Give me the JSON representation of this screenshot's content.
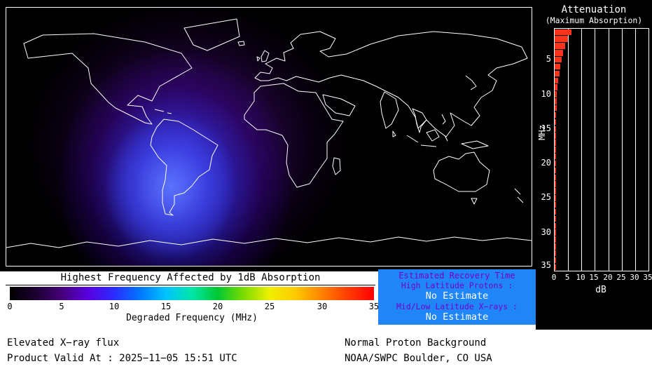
{
  "colors": {
    "panel_black": "#000000",
    "coastline_white": "#ffffff",
    "bar_red": "#f8341c",
    "recovery_box_blue": "#2086f8",
    "recovery_label_purple": "#7600c8",
    "recovery_value_white": "#ffffff",
    "absorption_blue": "#3c3cf5",
    "absorption_purple": "#6e19b9"
  },
  "attenuation_panel": {
    "title_line1": "Attenuation",
    "title_line2": "(Maximum Absorption)",
    "y_axis_label": "MHz",
    "x_axis_label": "dB",
    "y_ticks": [
      "5",
      "10",
      "15",
      "20",
      "25",
      "30",
      "35"
    ],
    "x_ticks": [
      "0",
      "5",
      "10",
      "15",
      "20",
      "25",
      "30",
      "35"
    ]
  },
  "chart_data": [
    {
      "type": "bar",
      "orientation": "horizontal",
      "title": "Attenuation (Maximum Absorption)",
      "xlabel": "dB",
      "ylabel": "MHz",
      "xlim": [
        0,
        35
      ],
      "ylim": [
        1,
        36
      ],
      "grid": true,
      "bar_color": "#f8341c",
      "categories_mhz": [
        1,
        2,
        3,
        4,
        5,
        6,
        7,
        8,
        9,
        10,
        11,
        12,
        13,
        14,
        15,
        16,
        17,
        18,
        19,
        20,
        21,
        22,
        23,
        24,
        25,
        26,
        27,
        28,
        29,
        30,
        31,
        32,
        33,
        34,
        35
      ],
      "values_db": [
        6.2,
        5.0,
        4.0,
        3.2,
        2.6,
        2.1,
        1.7,
        1.4,
        1.1,
        0.9,
        0.8,
        0.7,
        0.6,
        0.6,
        0.5,
        0.5,
        0.4,
        0.4,
        0.4,
        0.3,
        0.3,
        0.3,
        0.3,
        0.3,
        0.3,
        0.2,
        0.2,
        0.2,
        0.2,
        0.2,
        0.2,
        0.2,
        0.2,
        0.2,
        0.2
      ]
    },
    {
      "type": "heatmap",
      "title": "Highest Frequency Affected by 1dB Absorption",
      "colorbar_label": "Degraded Frequency (MHz)",
      "scale_min_mhz": 0,
      "scale_max_mhz": 35,
      "peak_region": "South America / South Atlantic (dayside)"
    }
  ],
  "legend": {
    "title": "Highest Frequency Affected by 1dB Absorption",
    "ticks": [
      "0",
      "5",
      "10",
      "15",
      "20",
      "25",
      "30",
      "35"
    ],
    "caption": "Degraded Frequency (MHz)",
    "gradient_stops": [
      "#000000",
      "#1c0030",
      "#46007a",
      "#5a00e0",
      "#2b2bff",
      "#0077ff",
      "#00c3ff",
      "#00e6a8",
      "#00c832",
      "#7ddc00",
      "#f0f000",
      "#ffc800",
      "#ff8200",
      "#ff3c00",
      "#ff0000"
    ]
  },
  "recovery": {
    "title": "Estimated Recovery Time",
    "rows": [
      {
        "label": "High Latitude Protons :",
        "value": "No Estimate"
      },
      {
        "label": "Mid/Low Latitude X−rays :",
        "value": "No Estimate"
      }
    ]
  },
  "footer": {
    "left_line1": "Elevated X−ray flux",
    "left_line2": "Product Valid At : 2025−11−05 15:51 UTC",
    "right_line1": "Normal Proton Background",
    "right_line2": "NOAA/SWPC Boulder, CO USA"
  }
}
